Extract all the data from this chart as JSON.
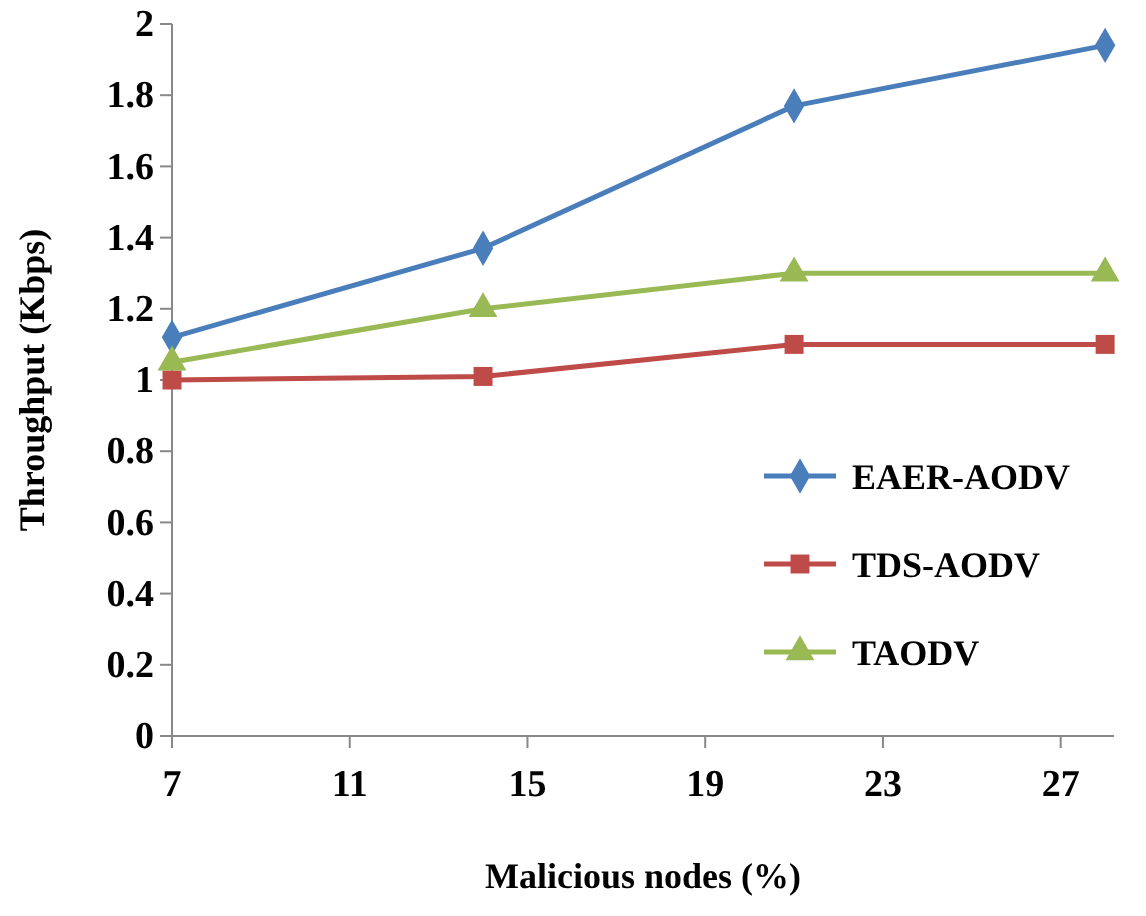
{
  "chart_data": {
    "type": "line",
    "xlabel": "Malicious nodes (%)",
    "ylabel": "Throughput (Kbps)",
    "x": [
      7,
      14,
      21,
      28
    ],
    "series": [
      {
        "name": "EAER-AODV",
        "color": "#4a7ebb",
        "marker": "diamond",
        "values": [
          1.12,
          1.37,
          1.77,
          1.94
        ]
      },
      {
        "name": "TDS-AODV",
        "color": "#be4b48",
        "marker": "square",
        "values": [
          1.0,
          1.01,
          1.1,
          1.1
        ]
      },
      {
        "name": "TAODV",
        "color": "#98b954",
        "marker": "triangle",
        "values": [
          1.05,
          1.2,
          1.3,
          1.3
        ]
      }
    ],
    "xlim": [
      7,
      28.2
    ],
    "xticks": [
      7,
      11,
      15,
      19,
      23,
      27
    ],
    "ylim": [
      0,
      2
    ],
    "yticks": [
      0,
      {
        "value": 0.2,
        "label": "0.2"
      },
      {
        "value": 0.4,
        "label": "0.4"
      },
      {
        "value": 0.6,
        "label": "0.6"
      },
      {
        "value": 0.8,
        "label": "0.8"
      },
      1,
      {
        "value": 1.2,
        "label": "1.2"
      },
      {
        "value": 1.4,
        "label": "1.4"
      },
      {
        "value": 1.6,
        "label": "1.6"
      },
      {
        "value": 1.8,
        "label": "1.8"
      },
      2
    ],
    "legend": "bottom right"
  }
}
